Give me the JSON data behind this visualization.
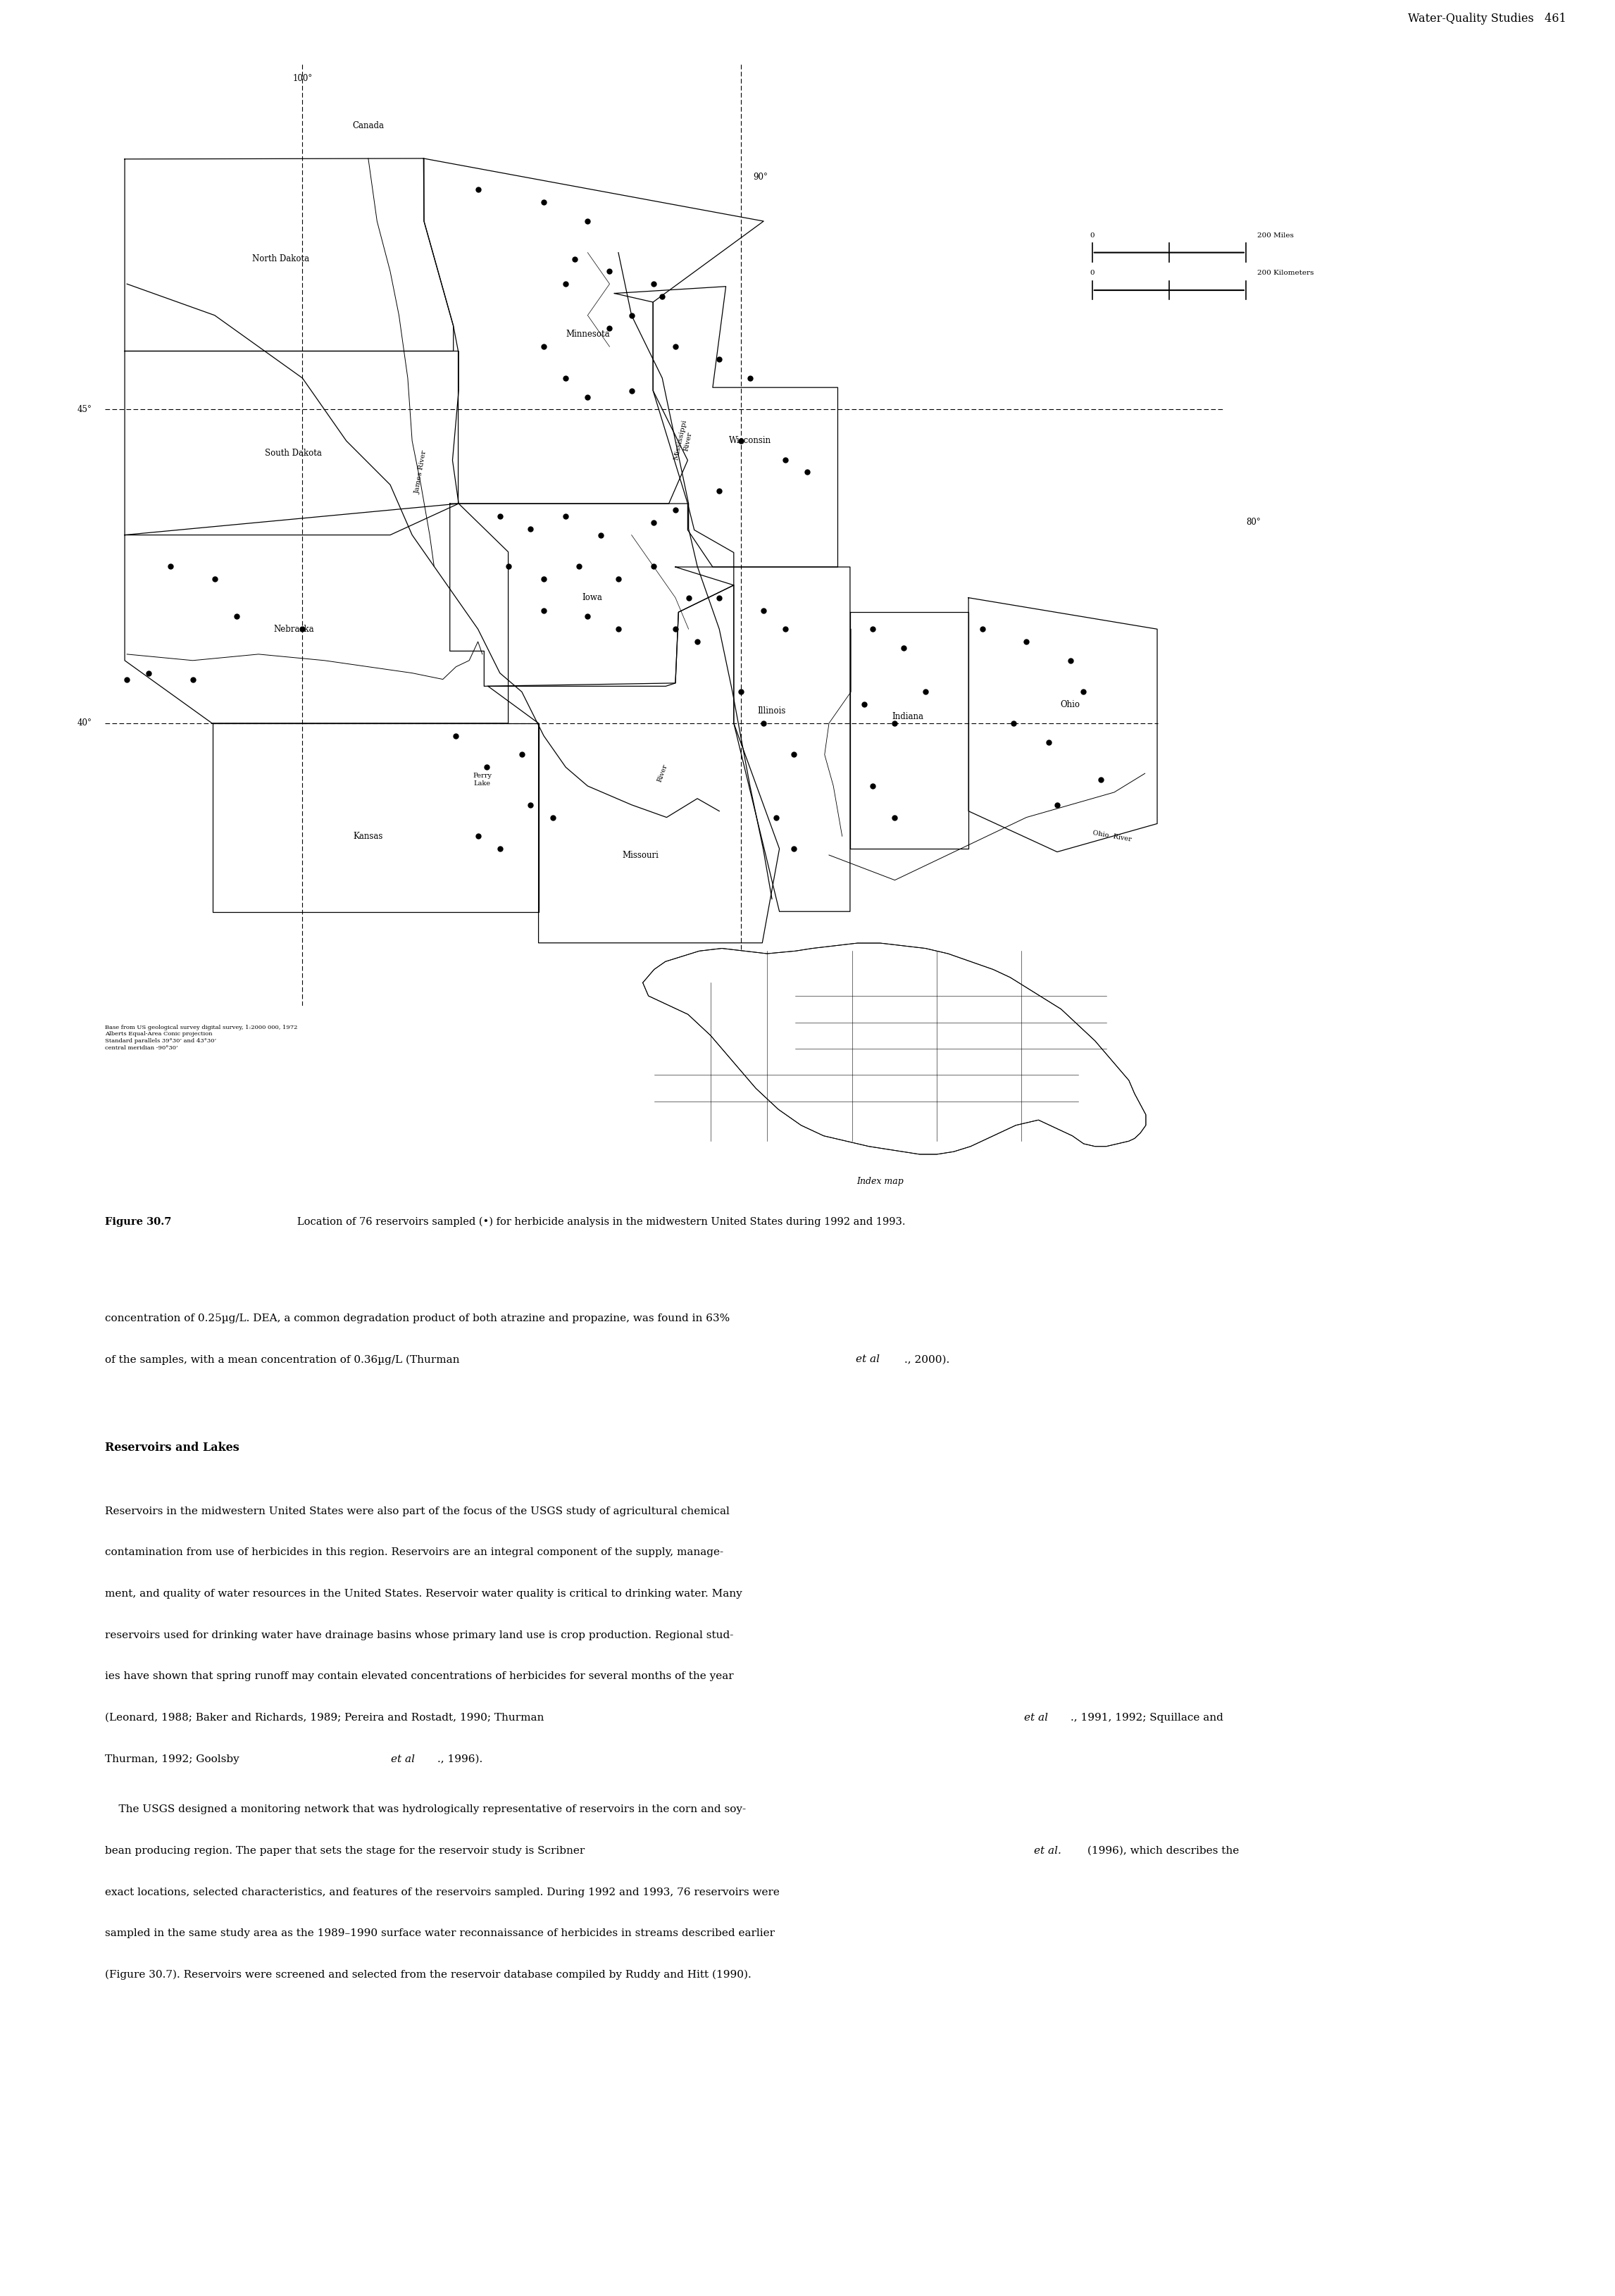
{
  "page_header": "Water-Quality Studies   461",
  "map_notes_lines": [
    "Base from US geological survey digital survey, 1:2000 000, 1972",
    "Alberts Equal-Area Conic projection",
    "Standard parallels 39°30’ and 43°30’",
    "central meridian -90°30’"
  ],
  "figure_caption_bold": "Figure 30.7",
  "figure_caption_rest": "   Location of 76 reservoirs sampled (•) for herbicide analysis in the midwestern United States during 1992 and 1993.",
  "para1": "concentration of 0.25µg/L. DEA, a common degradation product of both atrazine and propazine, was found in 63%\nof the samples, with a mean concentration of 0.36µg/L (Thurman ",
  "para1_italic": "et al",
  "para1_end": "., 2000).",
  "heading": "Reservoirs and Lakes",
  "para2_line1": "Reservoirs in the midwestern United States were also part of the focus of the USGS study of agricultural chemical",
  "para2_line2": "contamination from use of herbicides in this region. Reservoirs are an integral component of the supply, manage-",
  "para2_line3": "ment, and quality of water resources in the United States. Reservoir water quality is critical to drinking water. Many",
  "para2_line4": "reservoirs used for drinking water have drainage basins whose primary land use is crop production. Regional stud-",
  "para2_line5": "ies have shown that spring runoff may contain elevated concentrations of herbicides for several months of the year",
  "para2_line6": "(Leonard, 1988; Baker and Richards, 1989; Pereira and Rostadt, 1990; Thurman ",
  "para2_italic": "et al",
  "para2_line6end": "., 1991, 1992; Squillace and",
  "para2_line7": "Thurman, 1992; Goolsby ",
  "para2_italic2": "et al",
  "para2_line7end": "., 1996).",
  "para3_indent": "    The USGS designed a monitoring network that was hydrologically representative of reservoirs in the corn and soy-",
  "para3_line2": "bean producing region. The paper that sets the stage for the reservoir study is Scribner ",
  "para3_italic": "et al.",
  "para3_line2end": " (1996), which describes the",
  "para3_line3": "exact locations, selected characteristics, and features of the reservoirs sampled. During 1992 and 1993, 76 reservoirs were",
  "para3_line4": "sampled in the same study area as the 1989–1990 surface water reconnaissance of herbicides in streams described earlier",
  "para3_line5": "(Figure 30.7). Reservoirs were screened and selected from the reservoir database compiled by Ruddy and Hitt (1990).",
  "background_color": "#ffffff"
}
